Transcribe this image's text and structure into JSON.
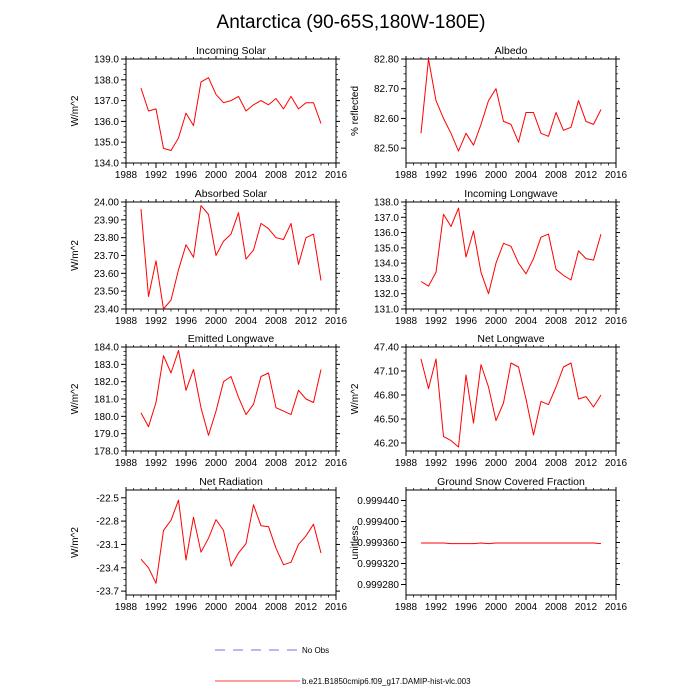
{
  "title": "Antarctica (90-65S,180W-180E)",
  "legend": [
    {
      "label": "No Obs",
      "color": "#4a4ad8",
      "style": "dashed"
    },
    {
      "label": "b.e21.B1850cmip6.f09_g17.DAMIP-hist-vlc.003",
      "color": "#ff0000",
      "style": "solid"
    }
  ],
  "chart_data": [
    {
      "type": "line",
      "title": "Incoming Solar",
      "ylabel": "W/m^2",
      "xlim": [
        1988,
        2016
      ],
      "xticks": [
        1988,
        1992,
        1996,
        2000,
        2004,
        2008,
        2012,
        2016
      ],
      "ylim": [
        134.0,
        139.0
      ],
      "yticks": [
        "134.0",
        "135.0",
        "136.0",
        "137.0",
        "138.0",
        "139.0"
      ],
      "series": [
        {
          "color": "#ff0000",
          "x": [
            1990,
            1991,
            1992,
            1993,
            1994,
            1995,
            1996,
            1997,
            1998,
            1999,
            2000,
            2001,
            2002,
            2003,
            2004,
            2005,
            2006,
            2007,
            2008,
            2009,
            2010,
            2011,
            2012,
            2013,
            2014
          ],
          "y": [
            137.6,
            136.5,
            136.6,
            134.7,
            134.6,
            135.2,
            136.4,
            135.8,
            137.9,
            138.1,
            137.3,
            136.9,
            137.0,
            137.2,
            136.5,
            136.8,
            137.0,
            136.8,
            137.1,
            136.6,
            137.2,
            136.6,
            136.9,
            136.9,
            135.9
          ]
        }
      ]
    },
    {
      "type": "line",
      "title": "Albedo",
      "ylabel": "% reflected",
      "xlim": [
        1988,
        2016
      ],
      "xticks": [
        1988,
        1992,
        1996,
        2000,
        2004,
        2008,
        2012,
        2016
      ],
      "ylim": [
        82.45,
        82.8
      ],
      "yticks": [
        "82.50",
        "82.60",
        "82.70",
        "82.80"
      ],
      "series": [
        {
          "color": "#ff0000",
          "x": [
            1990,
            1991,
            1992,
            1993,
            1994,
            1995,
            1996,
            1997,
            1998,
            1999,
            2000,
            2001,
            2002,
            2003,
            2004,
            2005,
            2006,
            2007,
            2008,
            2009,
            2010,
            2011,
            2012,
            2013,
            2014
          ],
          "y": [
            82.55,
            82.8,
            82.66,
            82.6,
            82.55,
            82.49,
            82.55,
            82.51,
            82.58,
            82.66,
            82.7,
            82.59,
            82.58,
            82.52,
            82.62,
            82.62,
            82.55,
            82.54,
            82.62,
            82.56,
            82.57,
            82.66,
            82.59,
            82.58,
            82.63
          ]
        }
      ]
    },
    {
      "type": "line",
      "title": "Absorbed Solar",
      "ylabel": "W/m^2",
      "xlim": [
        1988,
        2016
      ],
      "xticks": [
        1988,
        1992,
        1996,
        2000,
        2004,
        2008,
        2012,
        2016
      ],
      "ylim": [
        23.4,
        24.0
      ],
      "yticks": [
        "23.40",
        "23.50",
        "23.60",
        "23.70",
        "23.80",
        "23.90",
        "24.00"
      ],
      "series": [
        {
          "color": "#ff0000",
          "x": [
            1990,
            1991,
            1992,
            1993,
            1994,
            1995,
            1996,
            1997,
            1998,
            1999,
            2000,
            2001,
            2002,
            2003,
            2004,
            2005,
            2006,
            2007,
            2008,
            2009,
            2010,
            2011,
            2012,
            2013,
            2014
          ],
          "y": [
            23.96,
            23.47,
            23.67,
            23.4,
            23.45,
            23.62,
            23.76,
            23.69,
            23.98,
            23.93,
            23.7,
            23.78,
            23.82,
            23.94,
            23.68,
            23.73,
            23.88,
            23.85,
            23.8,
            23.79,
            23.88,
            23.65,
            23.8,
            23.82,
            23.56
          ]
        }
      ]
    },
    {
      "type": "line",
      "title": "Incoming Longwave",
      "ylabel": "",
      "xlim": [
        1988,
        2016
      ],
      "xticks": [
        1988,
        1992,
        1996,
        2000,
        2004,
        2008,
        2012,
        2016
      ],
      "ylim": [
        131.0,
        138.0
      ],
      "yticks": [
        "131.0",
        "132.0",
        "133.0",
        "134.0",
        "135.0",
        "136.0",
        "137.0",
        "138.0"
      ],
      "series": [
        {
          "color": "#ff0000",
          "x": [
            1990,
            1991,
            1992,
            1993,
            1994,
            1995,
            1996,
            1997,
            1998,
            1999,
            2000,
            2001,
            2002,
            2003,
            2004,
            2005,
            2006,
            2007,
            2008,
            2009,
            2010,
            2011,
            2012,
            2013,
            2014
          ],
          "y": [
            132.8,
            132.5,
            133.4,
            137.2,
            136.4,
            137.6,
            134.4,
            136.1,
            133.4,
            132.0,
            134.0,
            135.3,
            135.1,
            134.0,
            133.3,
            134.3,
            135.7,
            135.9,
            133.6,
            133.2,
            132.9,
            134.8,
            134.3,
            134.2,
            135.9
          ]
        }
      ]
    },
    {
      "type": "line",
      "title": "Emitted Longwave",
      "ylabel": "W/m^2",
      "xlim": [
        1988,
        2016
      ],
      "xticks": [
        1988,
        1992,
        1996,
        2000,
        2004,
        2008,
        2012,
        2016
      ],
      "ylim": [
        178.0,
        184.0
      ],
      "yticks": [
        "178.0",
        "179.0",
        "180.0",
        "181.0",
        "182.0",
        "183.0",
        "184.0"
      ],
      "series": [
        {
          "color": "#ff0000",
          "x": [
            1990,
            1991,
            1992,
            1993,
            1994,
            1995,
            1996,
            1997,
            1998,
            1999,
            2000,
            2001,
            2002,
            2003,
            2004,
            2005,
            2006,
            2007,
            2008,
            2009,
            2010,
            2011,
            2012,
            2013,
            2014
          ],
          "y": [
            180.2,
            179.4,
            180.8,
            183.5,
            182.5,
            183.8,
            181.5,
            182.7,
            180.5,
            178.9,
            180.3,
            182.0,
            182.3,
            181.1,
            180.1,
            180.7,
            182.3,
            182.5,
            180.5,
            180.3,
            180.1,
            181.5,
            181.0,
            180.8,
            182.7
          ]
        }
      ]
    },
    {
      "type": "line",
      "title": "Net Longwave",
      "ylabel": "W/m^2",
      "xlim": [
        1988,
        2016
      ],
      "xticks": [
        1988,
        1992,
        1996,
        2000,
        2004,
        2008,
        2012,
        2016
      ],
      "ylim": [
        46.1,
        47.4
      ],
      "yticks": [
        "46.20",
        "46.50",
        "46.80",
        "47.10",
        "47.40"
      ],
      "series": [
        {
          "color": "#ff0000",
          "x": [
            1990,
            1991,
            1992,
            1993,
            1994,
            1995,
            1996,
            1997,
            1998,
            1999,
            2000,
            2001,
            2002,
            2003,
            2004,
            2005,
            2006,
            2007,
            2008,
            2009,
            2010,
            2011,
            2012,
            2013,
            2014
          ],
          "y": [
            47.25,
            46.88,
            47.25,
            46.28,
            46.23,
            46.15,
            47.05,
            46.45,
            47.18,
            46.9,
            46.48,
            46.7,
            47.2,
            47.15,
            46.75,
            46.3,
            46.72,
            46.68,
            46.9,
            47.15,
            47.2,
            46.75,
            46.78,
            46.65,
            46.8
          ]
        }
      ]
    },
    {
      "type": "line",
      "title": "Net Radiation",
      "ylabel": "W/m^2",
      "xlim": [
        1988,
        2016
      ],
      "xticks": [
        1988,
        1992,
        1996,
        2000,
        2004,
        2008,
        2012,
        2016
      ],
      "ylim": [
        -23.75,
        -22.4
      ],
      "yticks": [
        "-22.5",
        "-22.8",
        "-23.1",
        "-23.4",
        "-23.7"
      ],
      "series": [
        {
          "color": "#ff0000",
          "x": [
            1990,
            1991,
            1992,
            1993,
            1994,
            1995,
            1996,
            1997,
            1998,
            1999,
            2000,
            2001,
            2002,
            2003,
            2004,
            2005,
            2006,
            2007,
            2008,
            2009,
            2010,
            2011,
            2012,
            2013,
            2014
          ],
          "y": [
            -23.29,
            -23.4,
            -23.6,
            -22.92,
            -22.79,
            -22.53,
            -23.3,
            -22.75,
            -23.2,
            -23.02,
            -22.78,
            -22.92,
            -23.38,
            -23.21,
            -23.09,
            -22.59,
            -22.86,
            -22.87,
            -23.15,
            -23.36,
            -23.33,
            -23.1,
            -22.99,
            -22.84,
            -23.21
          ]
        }
      ]
    },
    {
      "type": "line",
      "title": "Ground Snow Covered Fraction",
      "ylabel": "unitless",
      "xlim": [
        1988,
        2016
      ],
      "xticks": [
        1988,
        1992,
        1996,
        2000,
        2004,
        2008,
        2012,
        2016
      ],
      "ylim": [
        0.99926,
        0.99946
      ],
      "yticks": [
        "0.999280",
        "0.999320",
        "0.999360",
        "0.999400",
        "0.999440"
      ],
      "series": [
        {
          "color": "#ff0000",
          "x": [
            1990,
            1991,
            1992,
            1993,
            1994,
            1995,
            1996,
            1997,
            1998,
            1999,
            2000,
            2001,
            2002,
            2003,
            2004,
            2005,
            2006,
            2007,
            2008,
            2009,
            2010,
            2011,
            2012,
            2013,
            2014
          ],
          "y": [
            0.999359,
            0.999359,
            0.999359,
            0.999359,
            0.999358,
            0.999358,
            0.999358,
            0.999358,
            0.999359,
            0.999358,
            0.999359,
            0.999359,
            0.999359,
            0.999359,
            0.999359,
            0.999359,
            0.999359,
            0.999359,
            0.999359,
            0.999359,
            0.999359,
            0.999359,
            0.999359,
            0.999359,
            0.999358
          ]
        }
      ]
    }
  ]
}
